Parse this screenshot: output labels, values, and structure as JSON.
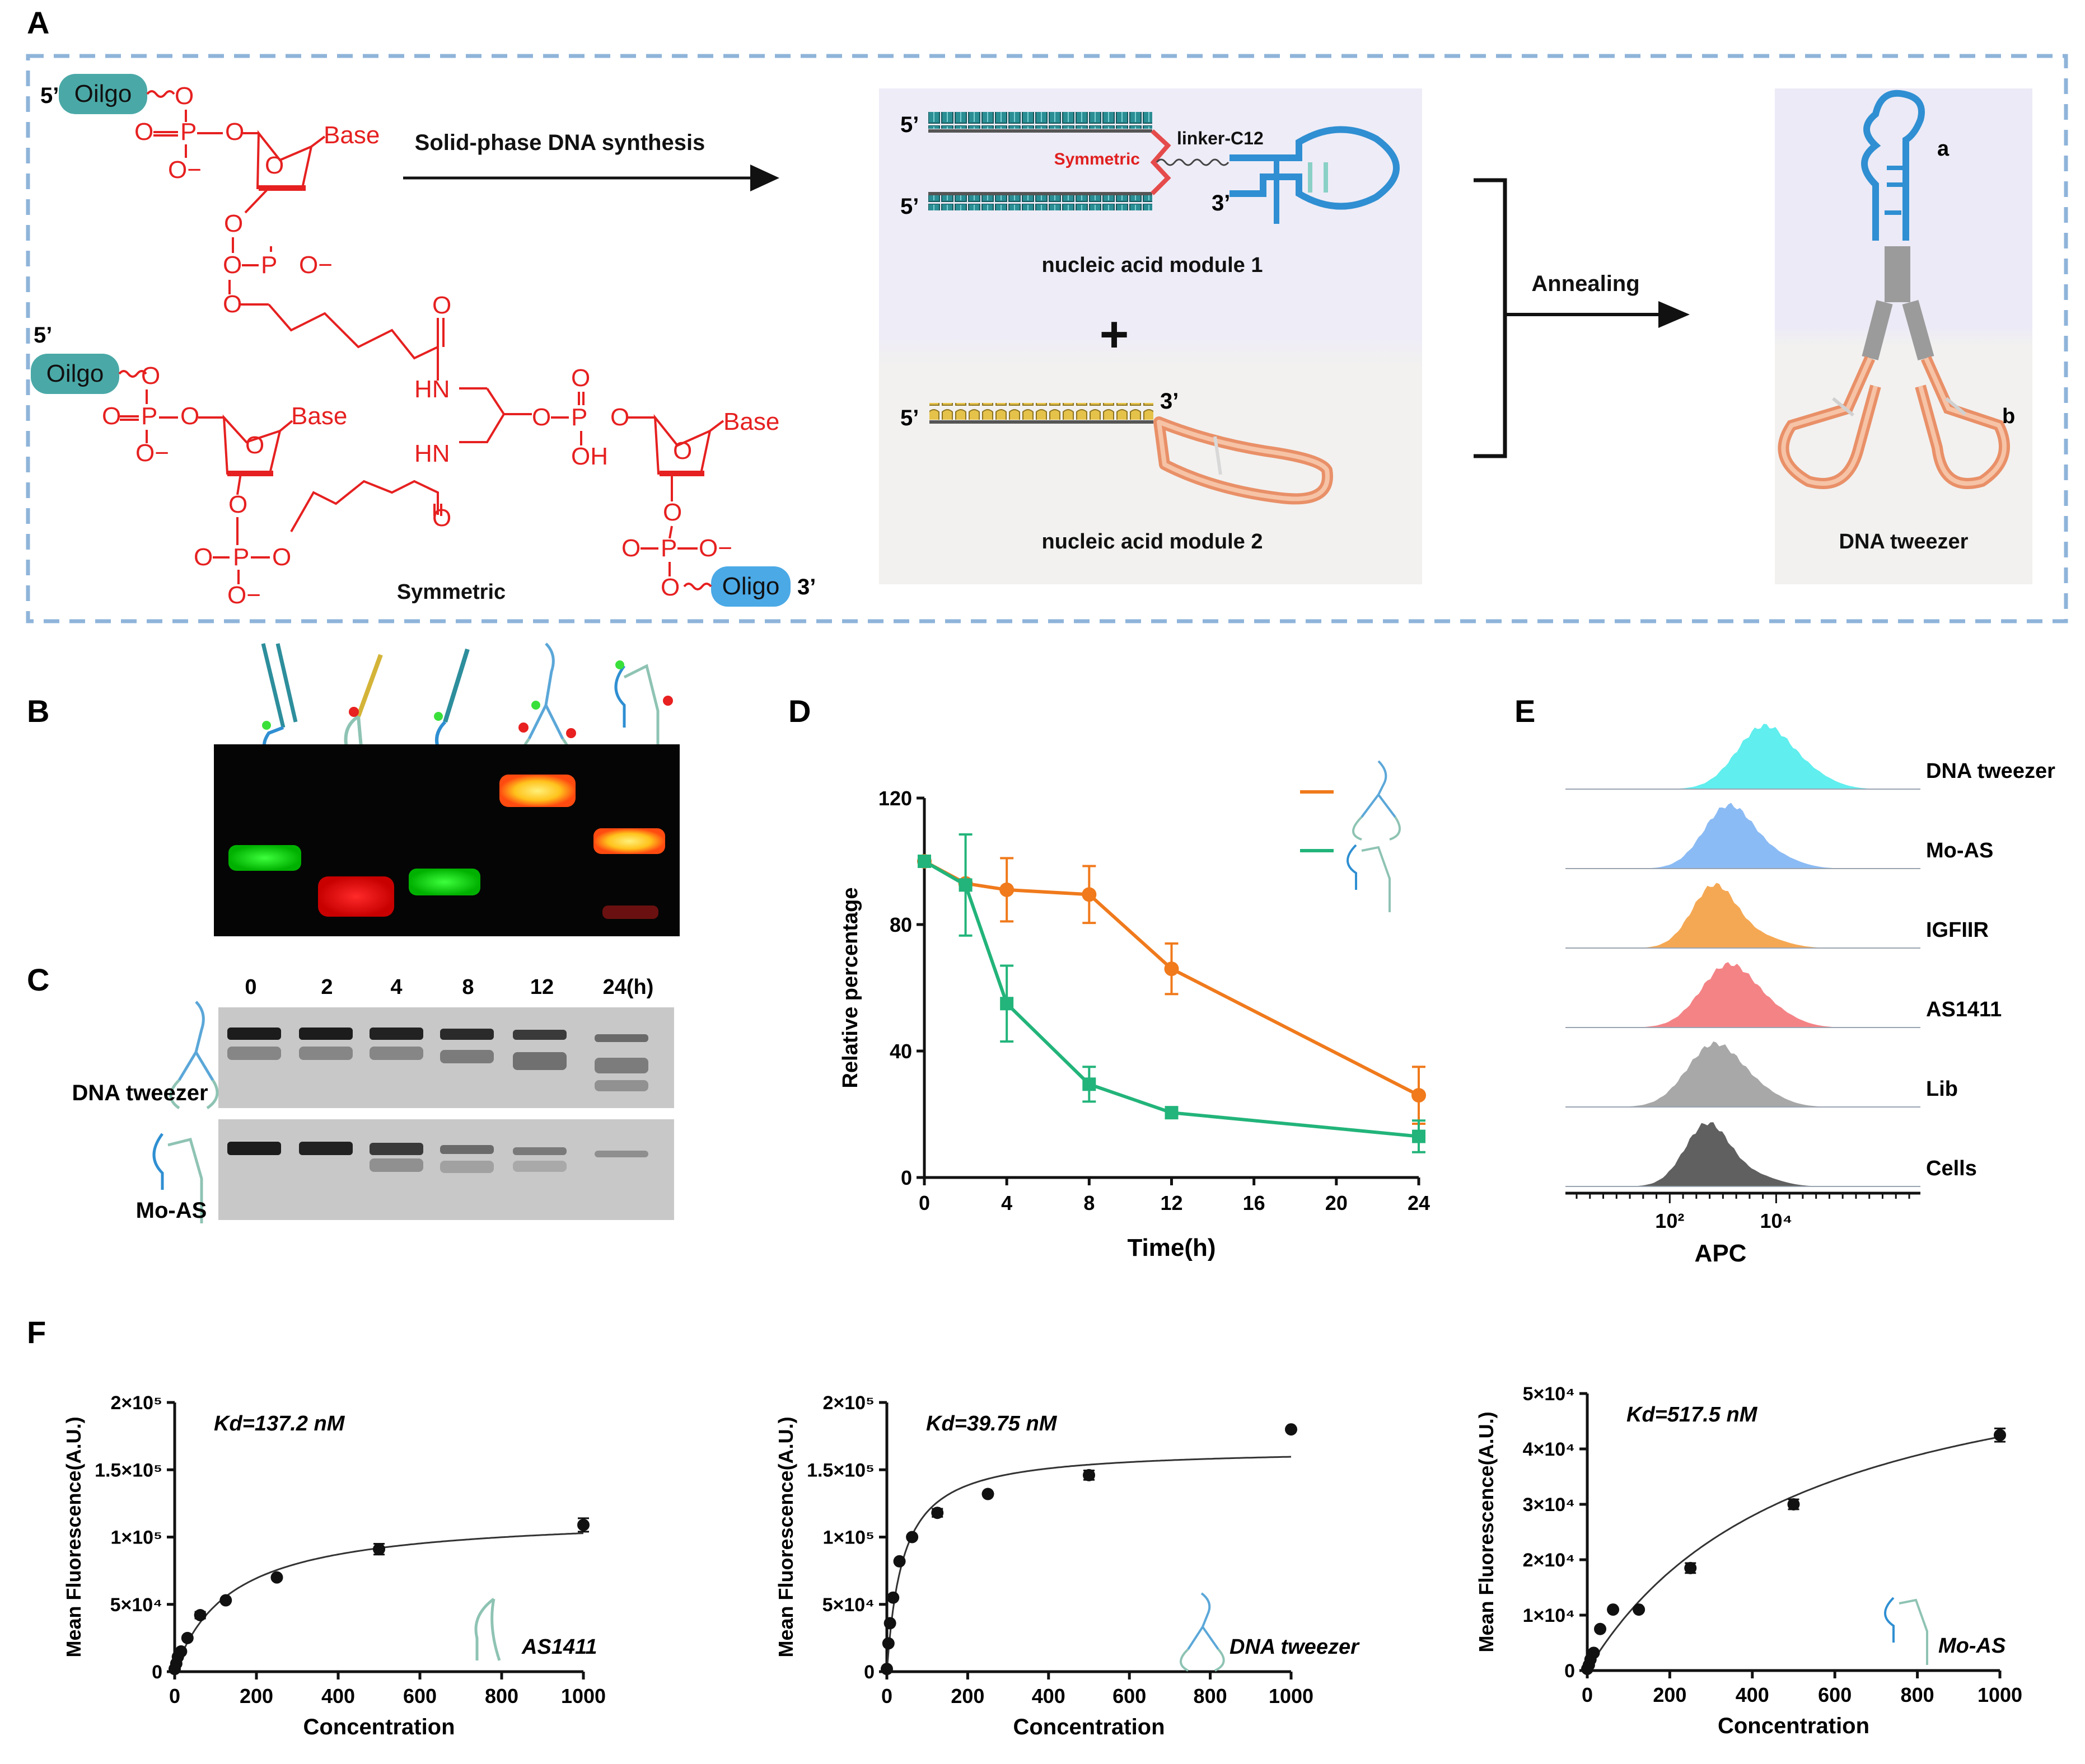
{
  "panels": {
    "A": "A",
    "B": "B",
    "C": "C",
    "D": "D",
    "E": "E",
    "F": "F"
  },
  "panel_a": {
    "oligo_labels": [
      "Oilgo",
      "Oilgo",
      "Oligo"
    ],
    "five_prime": "5’",
    "three_prime": "3’",
    "base": "Base",
    "oh": "OH",
    "hn": "HN",
    "chem_o": "O",
    "chem_p": "P",
    "o_minus": "O−",
    "symmetric_label": "Symmetric",
    "synthesis_label": "Solid-phase  DNA synthesis",
    "linker_label": "linker-C12",
    "symmetric_red": "Symmetric",
    "module1_label": "nucleic acid module 1",
    "module2_label": "nucleic acid module 2",
    "plus": "+",
    "annealing_label": "Annealing",
    "tweezer_label": "DNA tweezer",
    "label_a": "a",
    "label_b": "b"
  },
  "panel_c": {
    "timepoints": [
      "0",
      "2",
      "4",
      "8",
      "12",
      "24(h)"
    ],
    "row_labels": [
      "DNA tweezer",
      "Mo-AS"
    ]
  },
  "chart_data": [
    {
      "id": "D",
      "type": "line",
      "xlabel": "Time(h)",
      "ylabel": "Relative percentage",
      "xlim": [
        0,
        24
      ],
      "ylim": [
        0,
        120
      ],
      "xticks": [
        "0",
        "4",
        "8",
        "12",
        "16",
        "20",
        "24"
      ],
      "yticks": [
        "0",
        "40",
        "80",
        "120"
      ],
      "series": [
        {
          "color": "#F07A1C",
          "marker": "circle",
          "x": [
            0,
            2,
            4,
            8,
            12,
            24
          ],
          "y": [
            100,
            93,
            91,
            89.5,
            66,
            26
          ],
          "err": [
            0,
            0,
            10,
            9,
            8,
            9
          ]
        },
        {
          "color": "#22B47A",
          "marker": "square",
          "x": [
            0,
            2,
            4,
            8,
            12,
            24
          ],
          "y": [
            100,
            92.5,
            55,
            29.5,
            20.5,
            13
          ],
          "err": [
            0,
            16,
            12,
            5.5,
            0,
            5
          ]
        }
      ]
    },
    {
      "id": "E",
      "type": "area",
      "xlabel": "APC",
      "xticks": [
        "10²",
        "10⁴"
      ],
      "series": [
        {
          "name": "DNA tweezer",
          "color": "#60EEEE"
        },
        {
          "name": "Mo-AS",
          "color": "#8BBBF4"
        },
        {
          "name": "IGFIIR",
          "color": "#F5A853"
        },
        {
          "name": "AS1411",
          "color": "#F48386"
        },
        {
          "name": "Lib",
          "color": "#A8A8A8"
        },
        {
          "name": "Cells",
          "color": "#606060"
        }
      ]
    },
    {
      "id": "F1",
      "type": "scatter",
      "annotation": "Kd=137.2 nM",
      "legend": "AS1411",
      "xlabel": "Concentration",
      "ylabel": "Mean Fluorescence(A.U.)",
      "xlim": [
        0,
        1000
      ],
      "ylim": [
        0,
        200000
      ],
      "xticks": [
        "0",
        "200",
        "400",
        "600",
        "800",
        "1000"
      ],
      "yticks": [
        "0",
        "5×10⁴",
        "1×10⁵",
        "1.5×10⁵",
        "2×10⁵"
      ],
      "x": [
        0,
        3.9,
        7.8,
        15.6,
        31.25,
        62.5,
        125,
        250,
        500,
        1000
      ],
      "y": [
        2000,
        6000,
        11000,
        15000,
        25000,
        42000,
        53000,
        70000,
        91000,
        109000
      ],
      "err": [
        0,
        0,
        0,
        0,
        0,
        2500,
        0,
        0,
        4000,
        5000
      ],
      "fit": {
        "bmax": 117000,
        "kd": 137.2
      }
    },
    {
      "id": "F2",
      "type": "scatter",
      "annotation": "Kd=39.75 nM",
      "legend": "DNA tweezer",
      "xlabel": "Concentration",
      "ylabel": "Mean Fluorescence(A.U.)",
      "xlim": [
        0,
        1000
      ],
      "ylim": [
        0,
        200000
      ],
      "xticks": [
        "0",
        "200",
        "400",
        "600",
        "800",
        "1000"
      ],
      "yticks": [
        "0",
        "5×10⁴",
        "1×10⁵",
        "1.5×10⁵",
        "2×10⁵"
      ],
      "x": [
        0,
        3.9,
        7.8,
        15.6,
        31.25,
        62.5,
        125,
        250,
        500,
        1000
      ],
      "y": [
        2000,
        21000,
        36000,
        55000,
        82000,
        100000,
        118000,
        132000,
        146000,
        180000
      ],
      "err": [
        0,
        0,
        0,
        0,
        0,
        0,
        3000,
        0,
        3500,
        0
      ],
      "fit": {
        "bmax": 166000,
        "kd": 39.75
      }
    },
    {
      "id": "F3",
      "type": "scatter",
      "annotation": "Kd=517.5 nM",
      "legend": "Mo-AS",
      "xlabel": "Concentration",
      "ylabel": "Mean Fluorescence(A.U.)",
      "xlim": [
        0,
        1000
      ],
      "ylim": [
        0,
        50000
      ],
      "xticks": [
        "0",
        "200",
        "400",
        "600",
        "800",
        "1000"
      ],
      "yticks": [
        "0",
        "1×10⁴",
        "2×10⁴",
        "3×10⁴",
        "4×10⁴",
        "5×10⁴"
      ],
      "x": [
        0,
        3.9,
        7.8,
        15.6,
        31.25,
        62.5,
        125,
        250,
        500,
        1000
      ],
      "y": [
        300,
        1000,
        2000,
        3200,
        7500,
        11000,
        11000,
        18500,
        30000,
        42500
      ],
      "err": [
        0,
        0,
        0,
        0,
        0,
        0,
        0,
        900,
        900,
        1200
      ],
      "fit": {
        "bmax": 64000,
        "kd": 517.5
      }
    }
  ]
}
